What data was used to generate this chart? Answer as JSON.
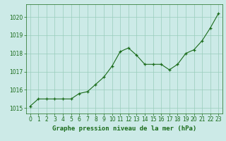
{
  "x": [
    0,
    1,
    2,
    3,
    4,
    5,
    6,
    7,
    8,
    9,
    10,
    11,
    12,
    13,
    14,
    15,
    16,
    17,
    18,
    19,
    20,
    21,
    22,
    23
  ],
  "y": [
    1015.1,
    1015.5,
    1015.5,
    1015.5,
    1015.5,
    1015.5,
    1015.8,
    1015.9,
    1016.3,
    1016.7,
    1017.3,
    1018.1,
    1018.3,
    1017.9,
    1017.4,
    1017.4,
    1017.4,
    1017.1,
    1017.4,
    1018.0,
    1018.2,
    1018.7,
    1019.4,
    1020.2
  ],
  "line_color": "#1a6b1a",
  "marker": "+",
  "marker_size": 3.5,
  "linewidth": 0.8,
  "bg_color": "#cceae7",
  "grid_color": "#99ccbb",
  "xlabel": "Graphe pression niveau de la mer (hPa)",
  "xlabel_color": "#1a6b1a",
  "xlabel_fontsize": 6.5,
  "tick_color": "#1a6b1a",
  "tick_fontsize": 5.5,
  "ylim": [
    1014.7,
    1020.7
  ],
  "yticks": [
    1015,
    1016,
    1017,
    1018,
    1019,
    1020
  ],
  "xlim": [
    -0.5,
    23.5
  ],
  "xticks": [
    0,
    1,
    2,
    3,
    4,
    5,
    6,
    7,
    8,
    9,
    10,
    11,
    12,
    13,
    14,
    15,
    16,
    17,
    18,
    19,
    20,
    21,
    22,
    23
  ]
}
